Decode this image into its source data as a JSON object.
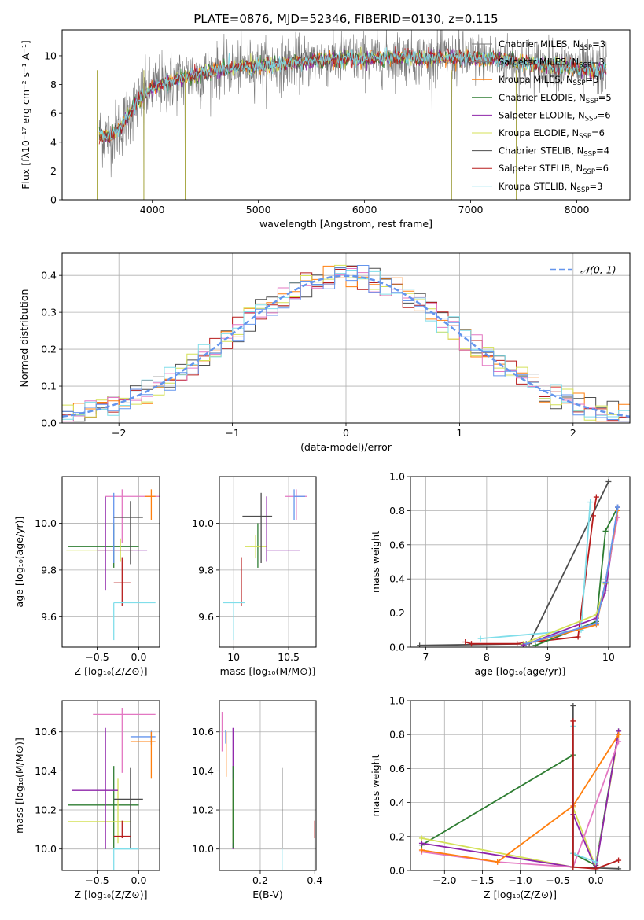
{
  "figure": {
    "title": "PLATE=0876, MJD=52346, FIBERID=0130, z=0.115"
  },
  "colors": [
    "#7a7a7a",
    "#7f7f7f",
    "#ff7f0e",
    "#2e7d32",
    "#8e24aa",
    "#d4e157",
    "#4d4d4d",
    "#b71c1c",
    "#80deea",
    "#e377c2",
    "#6495ed",
    "#aaaaaa"
  ],
  "chart_data": [
    {
      "type": "line",
      "id": "spectrum",
      "xlabel": "wavelength [Angstrom, rest frame]",
      "ylabel": "Flux [fλ10⁻¹⁷ erg cm⁻² s⁻¹ A⁻¹]",
      "xlim": [
        3150,
        8500
      ],
      "ylim": [
        0,
        11.8
      ],
      "xticks": [
        4000,
        5000,
        6000,
        7000,
        8000
      ],
      "yticks": [
        0,
        2,
        4,
        6,
        8,
        10
      ],
      "legend_position": "top-right",
      "legend": [
        {
          "label": "Chabrier MILES, N",
          "sub": "SSP",
          "tail": "=3",
          "color": "#7a7a7a"
        },
        {
          "label": "Salpeter MILES, N",
          "sub": "SSP",
          "tail": "=3",
          "color": "#7f7f7f"
        },
        {
          "label": "Kroupa MILES, N",
          "sub": "SSP",
          "tail": "=3",
          "color": "#ff7f0e"
        },
        {
          "label": "Chabrier ELODIE, N",
          "sub": "SSP",
          "tail": "=5",
          "color": "#2e7d32"
        },
        {
          "label": "Salpeter ELODIE, N",
          "sub": "SSP",
          "tail": "=6",
          "color": "#8e24aa"
        },
        {
          "label": "Kroupa ELODIE, N",
          "sub": "SSP",
          "tail": "=6",
          "color": "#d4e157"
        },
        {
          "label": "Chabrier STELIB, N",
          "sub": "SSP",
          "tail": "=4",
          "color": "#4d4d4d"
        },
        {
          "label": "Salpeter STELIB, N",
          "sub": "SSP",
          "tail": "=6",
          "color": "#b71c1c"
        },
        {
          "label": "Kroupa STELIB, N",
          "sub": "SSP",
          "tail": "=3",
          "color": "#80deea"
        }
      ],
      "continuum": [
        [
          3500,
          4.5
        ],
        [
          3600,
          4.4
        ],
        [
          3700,
          5.0
        ],
        [
          3800,
          6.2
        ],
        [
          3900,
          7.1
        ],
        [
          4000,
          7.8
        ],
        [
          4200,
          8.3
        ],
        [
          4400,
          8.6
        ],
        [
          4600,
          9.0
        ],
        [
          4800,
          9.2
        ],
        [
          5000,
          9.3
        ],
        [
          5200,
          9.4
        ],
        [
          5400,
          9.6
        ],
        [
          5600,
          9.7
        ],
        [
          5800,
          9.8
        ],
        [
          6000,
          9.8
        ],
        [
          6200,
          9.9
        ],
        [
          6400,
          9.9
        ],
        [
          6600,
          9.8
        ],
        [
          6800,
          9.9
        ],
        [
          7000,
          9.8
        ],
        [
          7200,
          9.8
        ],
        [
          7400,
          9.6
        ],
        [
          7600,
          9.4
        ],
        [
          7800,
          9.3
        ],
        [
          8000,
          9.1
        ],
        [
          8200,
          9.0
        ],
        [
          8280,
          9.0
        ]
      ],
      "sharp_drops": [
        [
          3480,
          0.0
        ],
        [
          3920,
          0.0
        ],
        [
          4310,
          0.0
        ],
        [
          6820,
          0.0
        ],
        [
          7430,
          0.0
        ]
      ]
    },
    {
      "type": "bar",
      "id": "residuals",
      "xlabel": "(data-model)/error",
      "ylabel": "Normed distribution",
      "xlim": [
        -2.5,
        2.5
      ],
      "ylim": [
        0,
        0.46
      ],
      "xticks": [
        -2,
        -1,
        0,
        1,
        2
      ],
      "yticks": [
        0.0,
        0.1,
        0.2,
        0.3,
        0.4
      ],
      "legend_position": "top-right",
      "legend": [
        {
          "label": "𝒩(0, 1)",
          "color": "#6495ed"
        }
      ],
      "bin_width": 0.1,
      "series": [
        {
          "name": "Chabrier MILES",
          "color": "#4d4d4d"
        },
        {
          "name": "Salpeter MILES",
          "color": "#b71c1c"
        },
        {
          "name": "Kroupa MILES",
          "color": "#ff7f0e"
        },
        {
          "name": "Chabrier ELODIE",
          "color": "#d4e157"
        },
        {
          "name": "Salpeter ELODIE",
          "color": "#e377c2"
        },
        {
          "name": "Kroupa STELIB",
          "color": "#80deea"
        },
        {
          "name": "Chabrier STELIB",
          "color": "#6495ed"
        }
      ]
    },
    {
      "type": "scatter",
      "id": "age-vs-Z",
      "xlabel": "Z [log₁₀(Z/Z⊙)]",
      "ylabel": "age  [log₁₀(age/yr)]",
      "xlim": [
        -0.92,
        0.25
      ],
      "ylim": [
        9.47,
        10.2
      ],
      "xticks": [
        -0.5,
        0.0
      ],
      "xticklabels": [
        "−0.5",
        "0.0"
      ],
      "yticks": [
        9.6,
        9.8,
        10.0
      ],
      "points": [
        {
          "x": -0.3,
          "xerr": [
            0.55,
            0.3
          ],
          "y": 9.9,
          "yerr": [
            0.09,
            0.1
          ],
          "color": "#2e7d32"
        },
        {
          "x": -0.22,
          "xerr": [
            0.65,
            0.15
          ],
          "y": 9.885,
          "yerr": [
            0.05,
            0.05
          ],
          "color": "#d4e157"
        },
        {
          "x": -0.4,
          "xerr": [
            0.1,
            0.5
          ],
          "y": 9.885,
          "yerr": [
            0.17,
            0.23
          ],
          "color": "#8e24aa"
        },
        {
          "x": -0.2,
          "xerr": [
            0.2,
            0.45
          ],
          "y": 10.115,
          "yerr": [
            0.2,
            0.03
          ],
          "color": "#e377c2"
        },
        {
          "x": 0.15,
          "xerr": [
            0.08,
            0.05
          ],
          "y": 10.115,
          "yerr": [
            0.1,
            0.03
          ],
          "color": "#ff7f0e"
        },
        {
          "x": -0.3,
          "xerr": [
            0.0,
            0.0
          ],
          "y": 10.03,
          "yerr": [
            0.2,
            0.1
          ],
          "color": "#6495ed"
        },
        {
          "x": -0.1,
          "xerr": [
            0.2,
            0.15
          ],
          "y": 10.025,
          "yerr": [
            0.2,
            0.07
          ],
          "color": "#4d4d4d"
        },
        {
          "x": -0.2,
          "xerr": [
            0.1,
            0.1
          ],
          "y": 9.745,
          "yerr": [
            0.1,
            0.11
          ],
          "color": "#b71c1c"
        },
        {
          "x": -0.3,
          "xerr": [
            0.0,
            0.5
          ],
          "y": 9.66,
          "yerr": [
            0.16,
            0.0
          ],
          "color": "#80deea"
        }
      ]
    },
    {
      "type": "scatter",
      "id": "age-vs-mass",
      "xlabel": "mass [log₁₀(M/M⊙)]",
      "ylabel": "",
      "xlim": [
        9.87,
        10.75
      ],
      "ylim": [
        9.47,
        10.2
      ],
      "xticks": [
        10.0,
        10.5
      ],
      "yticks": [
        9.6,
        9.8,
        10.0
      ],
      "points": [
        {
          "x": 10.22,
          "xerr": [
            0.0,
            0.0
          ],
          "y": 9.9,
          "yerr": [
            0.09,
            0.1
          ],
          "color": "#2e7d32"
        },
        {
          "x": 10.2,
          "xerr": [
            0.1,
            0.1
          ],
          "y": 9.9,
          "yerr": [
            0.05,
            0.05
          ],
          "color": "#d4e157"
        },
        {
          "x": 10.3,
          "xerr": [
            0.0,
            0.3
          ],
          "y": 9.885,
          "yerr": [
            0.05,
            0.23
          ],
          "color": "#8e24aa"
        },
        {
          "x": 10.57,
          "xerr": [
            0.1,
            0.1
          ],
          "y": 10.115,
          "yerr": [
            0.1,
            0.03
          ],
          "color": "#e377c2"
        },
        {
          "x": 10.55,
          "xerr": [
            0.0,
            0.1
          ],
          "y": 10.115,
          "yerr": [
            0.1,
            0.03
          ],
          "color": "#6495ed"
        },
        {
          "x": 10.25,
          "xerr": [
            0.17,
            0.1
          ],
          "y": 10.03,
          "yerr": [
            0.2,
            0.1
          ],
          "color": "#4d4d4d"
        },
        {
          "x": 10.07,
          "xerr": [
            0.0,
            0.0
          ],
          "y": 9.745,
          "yerr": [
            0.1,
            0.11
          ],
          "color": "#b71c1c"
        },
        {
          "x": 10.0,
          "xerr": [
            0.1,
            0.1
          ],
          "y": 9.66,
          "yerr": [
            0.16,
            0.0
          ],
          "color": "#80deea"
        }
      ]
    },
    {
      "type": "line",
      "id": "massweight-vs-age",
      "xlabel": "age  [log₁₀(age/yr)]",
      "ylabel": "mass weight",
      "xlim": [
        6.75,
        10.35
      ],
      "ylim": [
        0,
        1.0
      ],
      "xticks": [
        7,
        8,
        9,
        10
      ],
      "yticks": [
        0.0,
        0.2,
        0.4,
        0.6,
        0.8,
        1.0
      ],
      "series": [
        {
          "color": "#4d4d4d",
          "x": [
            6.9,
            8.7,
            10.0
          ],
          "y": [
            0.01,
            0.02,
            0.97
          ]
        },
        {
          "color": "#b71c1c",
          "x": [
            7.65,
            7.75,
            8.5,
            9.5,
            9.75,
            9.8
          ],
          "y": [
            0.03,
            0.02,
            0.02,
            0.06,
            0.77,
            0.88
          ]
        },
        {
          "color": "#80deea",
          "x": [
            7.9,
            9.55,
            9.7
          ],
          "y": [
            0.05,
            0.1,
            0.85
          ]
        },
        {
          "color": "#2e7d32",
          "x": [
            8.8,
            9.8,
            9.95,
            10.15
          ],
          "y": [
            0.01,
            0.15,
            0.68,
            0.82
          ]
        },
        {
          "color": "#d4e157",
          "x": [
            8.6,
            9.8,
            9.95,
            10.15
          ],
          "y": [
            0.02,
            0.19,
            0.37,
            0.8
          ]
        },
        {
          "color": "#8e24aa",
          "x": [
            8.6,
            9.8,
            9.95,
            10.15
          ],
          "y": [
            0.01,
            0.17,
            0.33,
            0.82
          ]
        },
        {
          "color": "#e377c2",
          "x": [
            8.65,
            9.8,
            9.95,
            10.15
          ],
          "y": [
            0.02,
            0.14,
            0.38,
            0.76
          ]
        },
        {
          "color": "#ff7f0e",
          "x": [
            8.65,
            9.8,
            9.95,
            10.15
          ],
          "y": [
            0.02,
            0.13,
            0.38,
            0.8
          ]
        },
        {
          "color": "#6495ed",
          "x": [
            8.65,
            9.8,
            9.95,
            10.15
          ],
          "y": [
            0.02,
            0.14,
            0.38,
            0.82
          ]
        }
      ]
    },
    {
      "type": "scatter",
      "id": "mass-vs-Z",
      "xlabel": "Z [log₁₀(Z/Z⊙)]",
      "ylabel": "mass [log₁₀(M/M⊙)]",
      "xlim": [
        -0.92,
        0.25
      ],
      "ylim": [
        9.89,
        10.76
      ],
      "xticks": [
        -0.5,
        0.0
      ],
      "xticklabels": [
        "−0.5",
        "0.0"
      ],
      "yticks": [
        10.0,
        10.2,
        10.4,
        10.6
      ],
      "points": [
        {
          "x": -0.3,
          "xerr": [
            0.55,
            0.3
          ],
          "y": 10.225,
          "yerr": [
            0.22,
            0.2
          ],
          "color": "#2e7d32"
        },
        {
          "x": -0.25,
          "xerr": [
            0.6,
            0.15
          ],
          "y": 10.14,
          "yerr": [
            0.11,
            0.22
          ],
          "color": "#d4e157"
        },
        {
          "x": -0.4,
          "xerr": [
            0.4,
            0.15
          ],
          "y": 10.3,
          "yerr": [
            0.3,
            0.32
          ],
          "color": "#8e24aa"
        },
        {
          "x": -0.2,
          "xerr": [
            0.35,
            0.4
          ],
          "y": 10.69,
          "yerr": [
            0.3,
            0.03
          ],
          "color": "#e377c2"
        },
        {
          "x": 0.15,
          "xerr": [
            0.25,
            0.05
          ],
          "y": 10.575,
          "yerr": [
            0.04,
            0.03
          ],
          "color": "#6495ed"
        },
        {
          "x": 0.15,
          "xerr": [
            0.25,
            0.05
          ],
          "y": 10.55,
          "yerr": [
            0.19,
            0.05
          ],
          "color": "#ff7f0e"
        },
        {
          "x": -0.1,
          "xerr": [
            0.2,
            0.15
          ],
          "y": 10.255,
          "yerr": [
            0.25,
            0.16
          ],
          "color": "#4d4d4d"
        },
        {
          "x": -0.2,
          "xerr": [
            0.1,
            0.1
          ],
          "y": 10.065,
          "yerr": [
            0.01,
            0.08
          ],
          "color": "#b71c1c"
        },
        {
          "x": -0.3,
          "xerr": [
            0.0,
            0.3
          ],
          "y": 10.0,
          "yerr": [
            0.12,
            0.0
          ],
          "color": "#80deea"
        }
      ]
    },
    {
      "type": "scatter",
      "id": "mass-vs-EBV",
      "xlabel": "E(B-V)",
      "ylabel": "",
      "xlim": [
        0.05,
        0.405
      ],
      "ylim": [
        9.89,
        10.76
      ],
      "xticks": [
        0.2,
        0.4
      ],
      "yticks": [
        10.0,
        10.2,
        10.4,
        10.6
      ],
      "points": [
        {
          "x": 0.06,
          "y": 10.6,
          "yerr": [
            0.1,
            0.1
          ],
          "color": "#e377c2"
        },
        {
          "x": 0.075,
          "y": 10.55,
          "yerr": [
            0.18,
            0.05
          ],
          "color": "#ff7f0e"
        },
        {
          "x": 0.073,
          "y": 10.58,
          "yerr": [
            0.04,
            0.03
          ],
          "color": "#6495ed"
        },
        {
          "x": 0.1,
          "y": 10.3,
          "yerr": [
            0.3,
            0.32
          ],
          "color": "#8e24aa"
        },
        {
          "x": 0.1,
          "y": 10.14,
          "yerr": [
            0.11,
            0.22
          ],
          "color": "#d4e157"
        },
        {
          "x": 0.1,
          "y": 10.225,
          "yerr": [
            0.22,
            0.2
          ],
          "color": "#2e7d32"
        },
        {
          "x": 0.28,
          "y": 10.255,
          "yerr": [
            0.25,
            0.16
          ],
          "color": "#4d4d4d"
        },
        {
          "x": 0.28,
          "y": 10.0,
          "yerr": [
            0.12,
            0.0
          ],
          "color": "#80deea"
        },
        {
          "x": 0.4,
          "y": 10.065,
          "yerr": [
            0.01,
            0.08
          ],
          "color": "#b71c1c"
        }
      ]
    },
    {
      "type": "line",
      "id": "massweight-vs-Z",
      "xlabel": "Z [log₁₀(Z/Z⊙)]",
      "ylabel": "mass weight",
      "xlim": [
        -2.45,
        0.45
      ],
      "ylim": [
        0,
        1.0
      ],
      "xticks": [
        -2.0,
        -1.5,
        -1.0,
        -0.5,
        0.0
      ],
      "xticklabels": [
        "−2.0",
        "−1.5",
        "−1.0",
        "−0.5",
        "0.0"
      ],
      "yticks": [
        0.0,
        0.2,
        0.4,
        0.6,
        0.8,
        1.0
      ],
      "series": [
        {
          "color": "#2e7d32",
          "x": [
            -2.3,
            -0.3,
            -0.3,
            0.0,
            0.3
          ],
          "y": [
            0.15,
            0.68,
            0.1,
            0.03,
            0.82
          ]
        },
        {
          "color": "#d4e157",
          "x": [
            -2.3,
            -0.3,
            -0.3,
            0.0,
            0.3
          ],
          "y": [
            0.19,
            0.02,
            0.37,
            0.02,
            0.8
          ]
        },
        {
          "color": "#8e24aa",
          "x": [
            -2.3,
            -0.3,
            -0.3,
            0.0,
            0.3
          ],
          "y": [
            0.16,
            0.02,
            0.33,
            0.01,
            0.82
          ]
        },
        {
          "color": "#e377c2",
          "x": [
            -2.3,
            -1.3,
            -0.3,
            0.3
          ],
          "y": [
            0.11,
            0.05,
            0.02,
            0.76
          ]
        },
        {
          "color": "#ff7f0e",
          "x": [
            -2.3,
            -1.3,
            -0.3,
            0.3
          ],
          "y": [
            0.12,
            0.05,
            0.38,
            0.8
          ]
        },
        {
          "color": "#80deea",
          "x": [
            -0.3,
            -0.3,
            0.0
          ],
          "y": [
            0.85,
            0.1,
            0.05
          ]
        },
        {
          "color": "#4d4d4d",
          "x": [
            -0.3,
            -0.3,
            0.3
          ],
          "y": [
            0.97,
            0.02,
            0.01
          ]
        },
        {
          "color": "#b71c1c",
          "x": [
            -0.3,
            -0.3,
            0.0,
            0.3
          ],
          "y": [
            0.88,
            0.02,
            0.01,
            0.06
          ]
        }
      ]
    }
  ]
}
